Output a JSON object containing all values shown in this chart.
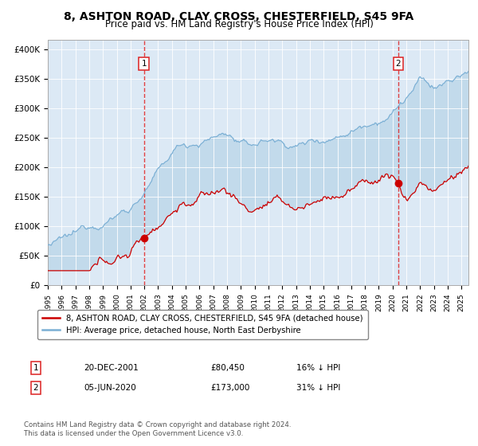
{
  "title": "8, ASHTON ROAD, CLAY CROSS, CHESTERFIELD, S45 9FA",
  "subtitle": "Price paid vs. HM Land Registry's House Price Index (HPI)",
  "title_fontsize": 10,
  "subtitle_fontsize": 8.5,
  "plot_bg_color": "#dce9f5",
  "red_line_color": "#cc0000",
  "blue_line_color": "#7aafd4",
  "fill_color": "#b8d4e8",
  "dashed_line_color": "#dd2222",
  "ylabel_ticks": [
    "£0",
    "£50K",
    "£100K",
    "£150K",
    "£200K",
    "£250K",
    "£300K",
    "£350K",
    "£400K"
  ],
  "ytick_vals": [
    0,
    50000,
    100000,
    150000,
    200000,
    250000,
    300000,
    350000,
    400000
  ],
  "ylim": [
    0,
    415000
  ],
  "xlim_start": 1995.0,
  "xlim_end": 2025.5,
  "xtick_years": [
    1995,
    1996,
    1997,
    1998,
    1999,
    2000,
    2001,
    2002,
    2003,
    2004,
    2005,
    2006,
    2007,
    2008,
    2009,
    2010,
    2011,
    2012,
    2013,
    2014,
    2015,
    2016,
    2017,
    2018,
    2019,
    2020,
    2021,
    2022,
    2023,
    2024,
    2025
  ],
  "sale1_date": 2001.97,
  "sale1_price": 80450,
  "sale1_label": "1",
  "sale2_date": 2020.42,
  "sale2_price": 173000,
  "sale2_label": "2",
  "legend_red": "8, ASHTON ROAD, CLAY CROSS, CHESTERFIELD, S45 9FA (detached house)",
  "legend_blue": "HPI: Average price, detached house, North East Derbyshire",
  "note1_label": "1",
  "note1_date": "20-DEC-2001",
  "note1_price": "£80,450",
  "note1_pct": "16% ↓ HPI",
  "note2_label": "2",
  "note2_date": "05-JUN-2020",
  "note2_price": "£173,000",
  "note2_pct": "31% ↓ HPI",
  "footer": "Contains HM Land Registry data © Crown copyright and database right 2024.\nThis data is licensed under the Open Government Licence v3.0."
}
